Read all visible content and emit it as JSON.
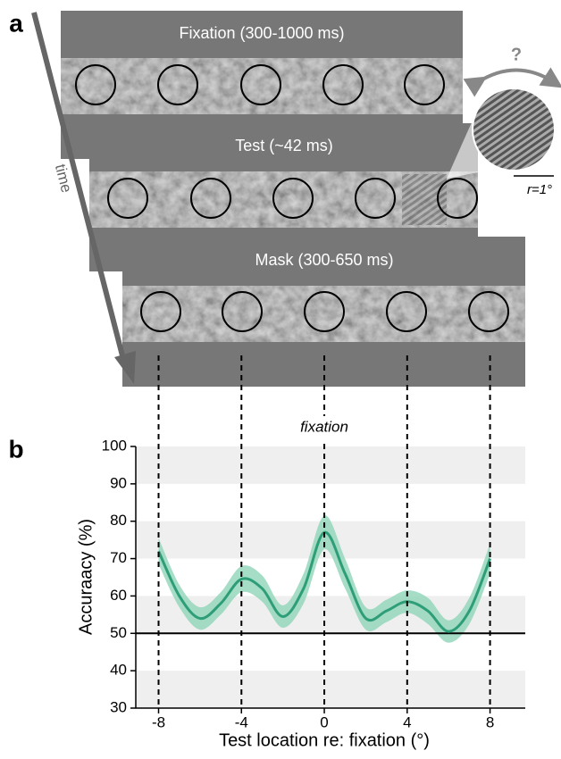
{
  "panel_a": {
    "label": "a",
    "frames": [
      "Fixation (300-1000 ms)",
      "Test (~42 ms)",
      "Mask (300-650 ms)"
    ],
    "time_label": "time",
    "question_mark": "?",
    "radius_label": "r=1°"
  },
  "chart_data": {
    "type": "line",
    "panel_label": "b",
    "annotation": "fixation",
    "x_label": "Test location re: fixation (°)",
    "y_label": "Accuraacy (%)",
    "x": [
      -8,
      -7,
      -6,
      -5,
      -4,
      -3,
      -2,
      -1,
      0,
      1,
      2,
      3,
      4,
      5,
      6,
      7,
      8
    ],
    "series": [
      {
        "color": "#2e9e78",
        "band_color": "#8fd4b9",
        "values": [
          72,
          60,
          54,
          58,
          64.5,
          62,
          54.5,
          62,
          77,
          66,
          54,
          56,
          58.5,
          56,
          50.5,
          56,
          70
        ],
        "ci_lower": [
          68.5,
          57,
          51,
          55,
          61,
          58.5,
          51.5,
          58,
          72.5,
          62,
          51,
          53,
          55.5,
          52.5,
          47.5,
          52.5,
          66
        ],
        "ci_upper": [
          75.5,
          63,
          57,
          61,
          68,
          65.5,
          57.5,
          66,
          81.5,
          70,
          57,
          59,
          61.5,
          59.5,
          53.5,
          59.5,
          74
        ]
      }
    ],
    "xlim": [
      -9.1,
      9.7
    ],
    "ylim": [
      30,
      100
    ],
    "xticks": [
      -8,
      -4,
      0,
      4,
      8
    ],
    "yticks": [
      30,
      40,
      50,
      60,
      70,
      80,
      90,
      100
    ],
    "grid_bands": true,
    "reference_line": 50
  }
}
